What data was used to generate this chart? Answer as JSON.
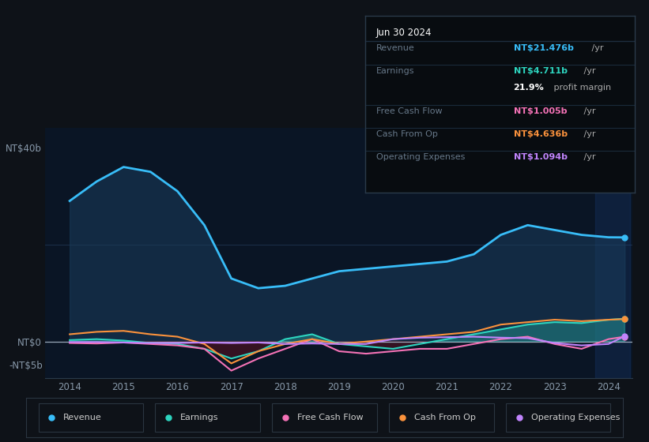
{
  "bg_color": "#0e1218",
  "chart_area_color": "#0a1525",
  "x_years": [
    2014,
    2014.5,
    2015,
    2015.5,
    2016,
    2016.5,
    2017,
    2017.5,
    2018,
    2018.5,
    2019,
    2019.5,
    2020,
    2020.5,
    2021,
    2021.5,
    2022,
    2022.5,
    2023,
    2023.5,
    2024,
    2024.3
  ],
  "revenue": [
    29,
    33,
    36,
    35,
    31,
    24,
    13,
    11,
    11.5,
    13,
    14.5,
    15,
    15.5,
    16,
    16.5,
    18,
    22,
    24,
    23,
    22,
    21.5,
    21.476
  ],
  "earnings": [
    0.3,
    0.5,
    0.2,
    -0.3,
    -0.5,
    -1.5,
    -3.5,
    -2.0,
    0.5,
    1.5,
    -0.5,
    -1.0,
    -1.5,
    -0.5,
    0.5,
    1.5,
    2.5,
    3.5,
    4.0,
    3.8,
    4.5,
    4.711
  ],
  "free_cash_flow": [
    -0.3,
    -0.4,
    -0.2,
    -0.5,
    -0.8,
    -1.5,
    -6.0,
    -3.5,
    -1.5,
    0.5,
    -2.0,
    -2.5,
    -2.0,
    -1.5,
    -1.5,
    -0.5,
    0.5,
    1.0,
    -0.5,
    -1.5,
    0.5,
    1.005
  ],
  "cash_from_op": [
    1.5,
    2.0,
    2.2,
    1.5,
    1.0,
    -0.5,
    -4.5,
    -2.0,
    -0.5,
    0.5,
    -0.5,
    0.0,
    0.5,
    1.0,
    1.5,
    2.0,
    3.5,
    4.0,
    4.5,
    4.2,
    4.5,
    4.636
  ],
  "operating_expenses": [
    -0.1,
    -0.1,
    -0.2,
    -0.3,
    -0.3,
    -0.2,
    -0.3,
    -0.2,
    -0.5,
    -0.4,
    -0.5,
    -0.5,
    0.5,
    0.8,
    0.9,
    1.0,
    0.8,
    0.7,
    -0.3,
    -0.8,
    -0.5,
    1.094
  ],
  "revenue_color": "#38bdf8",
  "earnings_color": "#2dd4bf",
  "free_cash_flow_color": "#f472b6",
  "cash_from_op_color": "#fb923c",
  "operating_expenses_color": "#c084fc",
  "revenue_fill_alpha": 0.55,
  "ylim_min": -7.5,
  "ylim_max": 44,
  "x_ticks": [
    2014,
    2015,
    2016,
    2017,
    2018,
    2019,
    2020,
    2021,
    2022,
    2023,
    2024
  ],
  "tooltip_title": "Jun 30 2024",
  "tooltip_rows": [
    {
      "label": "Revenue",
      "value": "NT$21.476b",
      "unit": "/yr",
      "color": "#38bdf8",
      "indent": false
    },
    {
      "label": "Earnings",
      "value": "NT$4.711b",
      "unit": "/yr",
      "color": "#2dd4bf",
      "indent": false
    },
    {
      "label": "",
      "value": "21.9%",
      "unit": "profit margin",
      "color": "#ffffff",
      "indent": true
    },
    {
      "label": "Free Cash Flow",
      "value": "NT$1.005b",
      "unit": "/yr",
      "color": "#f472b6",
      "indent": false
    },
    {
      "label": "Cash From Op",
      "value": "NT$4.636b",
      "unit": "/yr",
      "color": "#fb923c",
      "indent": false
    },
    {
      "label": "Operating Expenses",
      "value": "NT$1.094b",
      "unit": "/yr",
      "color": "#c084fc",
      "indent": false
    }
  ],
  "legend_items": [
    {
      "label": "Revenue",
      "color": "#38bdf8"
    },
    {
      "label": "Earnings",
      "color": "#2dd4bf"
    },
    {
      "label": "Free Cash Flow",
      "color": "#f472b6"
    },
    {
      "label": "Cash From Op",
      "color": "#fb923c"
    },
    {
      "label": "Operating Expenses",
      "color": "#c084fc"
    }
  ]
}
